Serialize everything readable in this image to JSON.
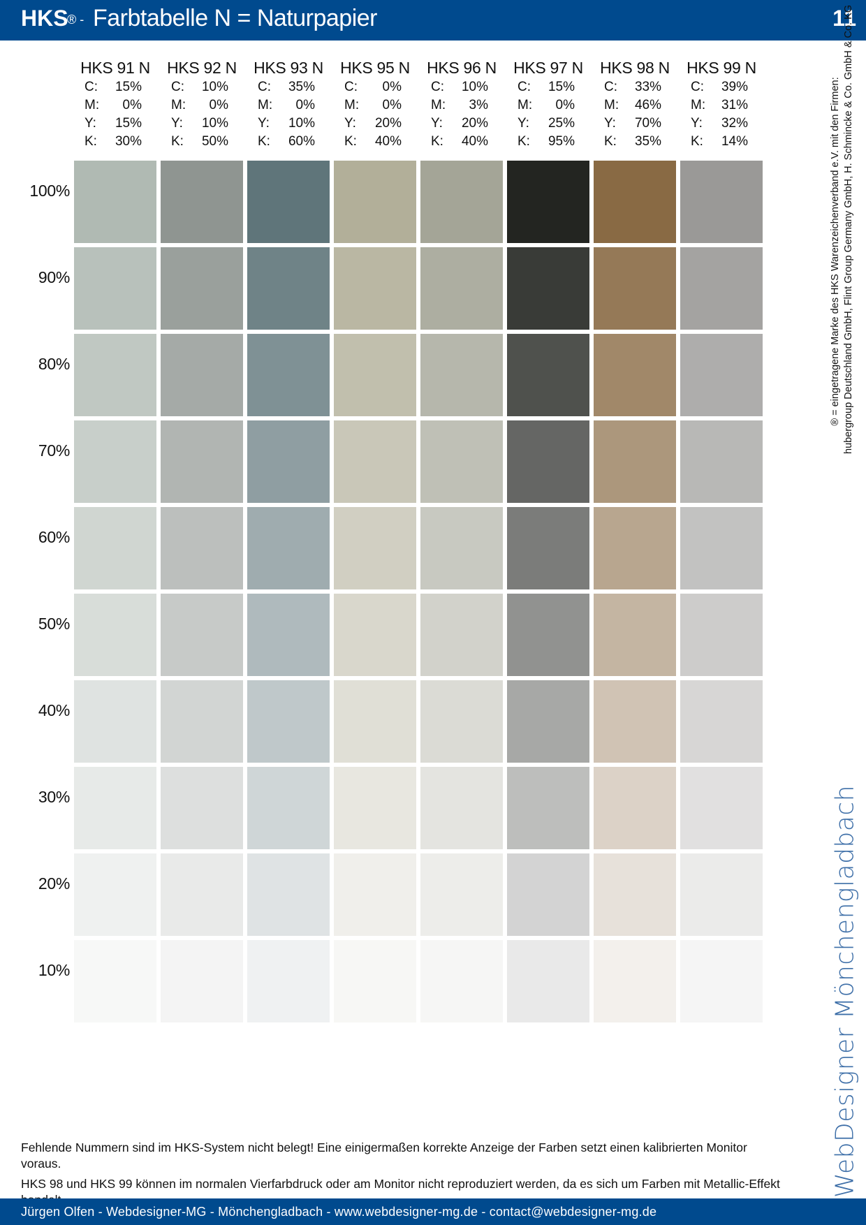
{
  "header": {
    "brand": "HKS",
    "registered": "® -",
    "title": "Farbtabelle N = Naturpapier",
    "page_number": "11"
  },
  "columns": [
    {
      "name": "HKS 91 N",
      "cmyk": [
        {
          "label": "C:",
          "value": "15%"
        },
        {
          "label": "M:",
          "value": "0%"
        },
        {
          "label": "Y:",
          "value": "15%"
        },
        {
          "label": "K:",
          "value": "30%"
        }
      ],
      "color": "#b0bab3"
    },
    {
      "name": "HKS 92 N",
      "cmyk": [
        {
          "label": "C:",
          "value": "10%"
        },
        {
          "label": "M:",
          "value": "0%"
        },
        {
          "label": "Y:",
          "value": "10%"
        },
        {
          "label": "K:",
          "value": "50%"
        }
      ],
      "color": "#8f9591"
    },
    {
      "name": "HKS 93 N",
      "cmyk": [
        {
          "label": "C:",
          "value": "35%"
        },
        {
          "label": "M:",
          "value": "0%"
        },
        {
          "label": "Y:",
          "value": "10%"
        },
        {
          "label": "K:",
          "value": "60%"
        }
      ],
      "color": "#5f757a"
    },
    {
      "name": "HKS 95 N",
      "cmyk": [
        {
          "label": "C:",
          "value": "0%"
        },
        {
          "label": "M:",
          "value": "0%"
        },
        {
          "label": "Y:",
          "value": "20%"
        },
        {
          "label": "K:",
          "value": "40%"
        }
      ],
      "color": "#b2af99"
    },
    {
      "name": "HKS 96 N",
      "cmyk": [
        {
          "label": "C:",
          "value": "10%"
        },
        {
          "label": "M:",
          "value": "3%"
        },
        {
          "label": "Y:",
          "value": "20%"
        },
        {
          "label": "K:",
          "value": "40%"
        }
      ],
      "color": "#a4a597"
    },
    {
      "name": "HKS 97 N",
      "cmyk": [
        {
          "label": "C:",
          "value": "15%"
        },
        {
          "label": "M:",
          "value": "0%"
        },
        {
          "label": "Y:",
          "value": "25%"
        },
        {
          "label": "K:",
          "value": "95%"
        }
      ],
      "color": "#232521"
    },
    {
      "name": "HKS 98 N",
      "cmyk": [
        {
          "label": "C:",
          "value": "33%"
        },
        {
          "label": "M:",
          "value": "46%"
        },
        {
          "label": "Y:",
          "value": "70%"
        },
        {
          "label": "K:",
          "value": "35%"
        }
      ],
      "color": "#896a44"
    },
    {
      "name": "HKS 99 N",
      "cmyk": [
        {
          "label": "C:",
          "value": "39%"
        },
        {
          "label": "M:",
          "value": "31%"
        },
        {
          "label": "Y:",
          "value": "32%"
        },
        {
          "label": "K:",
          "value": "14%"
        }
      ],
      "color": "#9a9997"
    }
  ],
  "tints": [
    {
      "label": "100%",
      "value": 1.0
    },
    {
      "label": "90%",
      "value": 0.9
    },
    {
      "label": "80%",
      "value": 0.8
    },
    {
      "label": "70%",
      "value": 0.7
    },
    {
      "label": "60%",
      "value": 0.6
    },
    {
      "label": "50%",
      "value": 0.5
    },
    {
      "label": "40%",
      "value": 0.4
    },
    {
      "label": "30%",
      "value": 0.3
    },
    {
      "label": "20%",
      "value": 0.2
    },
    {
      "label": "10%",
      "value": 0.1
    }
  ],
  "side_note": {
    "line1": "® = eingetragene Marke des HKS Warenzeichenverband e.V. mit den Firmen:",
    "line2": "hubergroup Deutschland GmbH, Flint Group Germany GmbH, H. Schmincke & Co. GmbH & Co. KG"
  },
  "logo": {
    "text": "WebDesigner Mönchengladbach",
    "icon": "wd-logo-icon",
    "color": "#3e6fa8"
  },
  "notes": {
    "line1": "Fehlende Nummern sind im HKS-System nicht belegt! Eine einigermaßen korrekte Anzeige der Farben setzt einen kalibrierten Monitor voraus.",
    "line2": "HKS 98 und HKS 99 können im normalen Vierfarbdruck oder am Monitor nicht reproduziert werden, da es sich um Farben mit Metallic-Effekt handelt."
  },
  "footer": {
    "text": "Jürgen Olfen - Webdesigner-MG - Mönchengladbach - www.webdesigner-mg.de - contact@webdesigner-mg.de"
  },
  "colors": {
    "brand_blue": "#004a8e"
  }
}
